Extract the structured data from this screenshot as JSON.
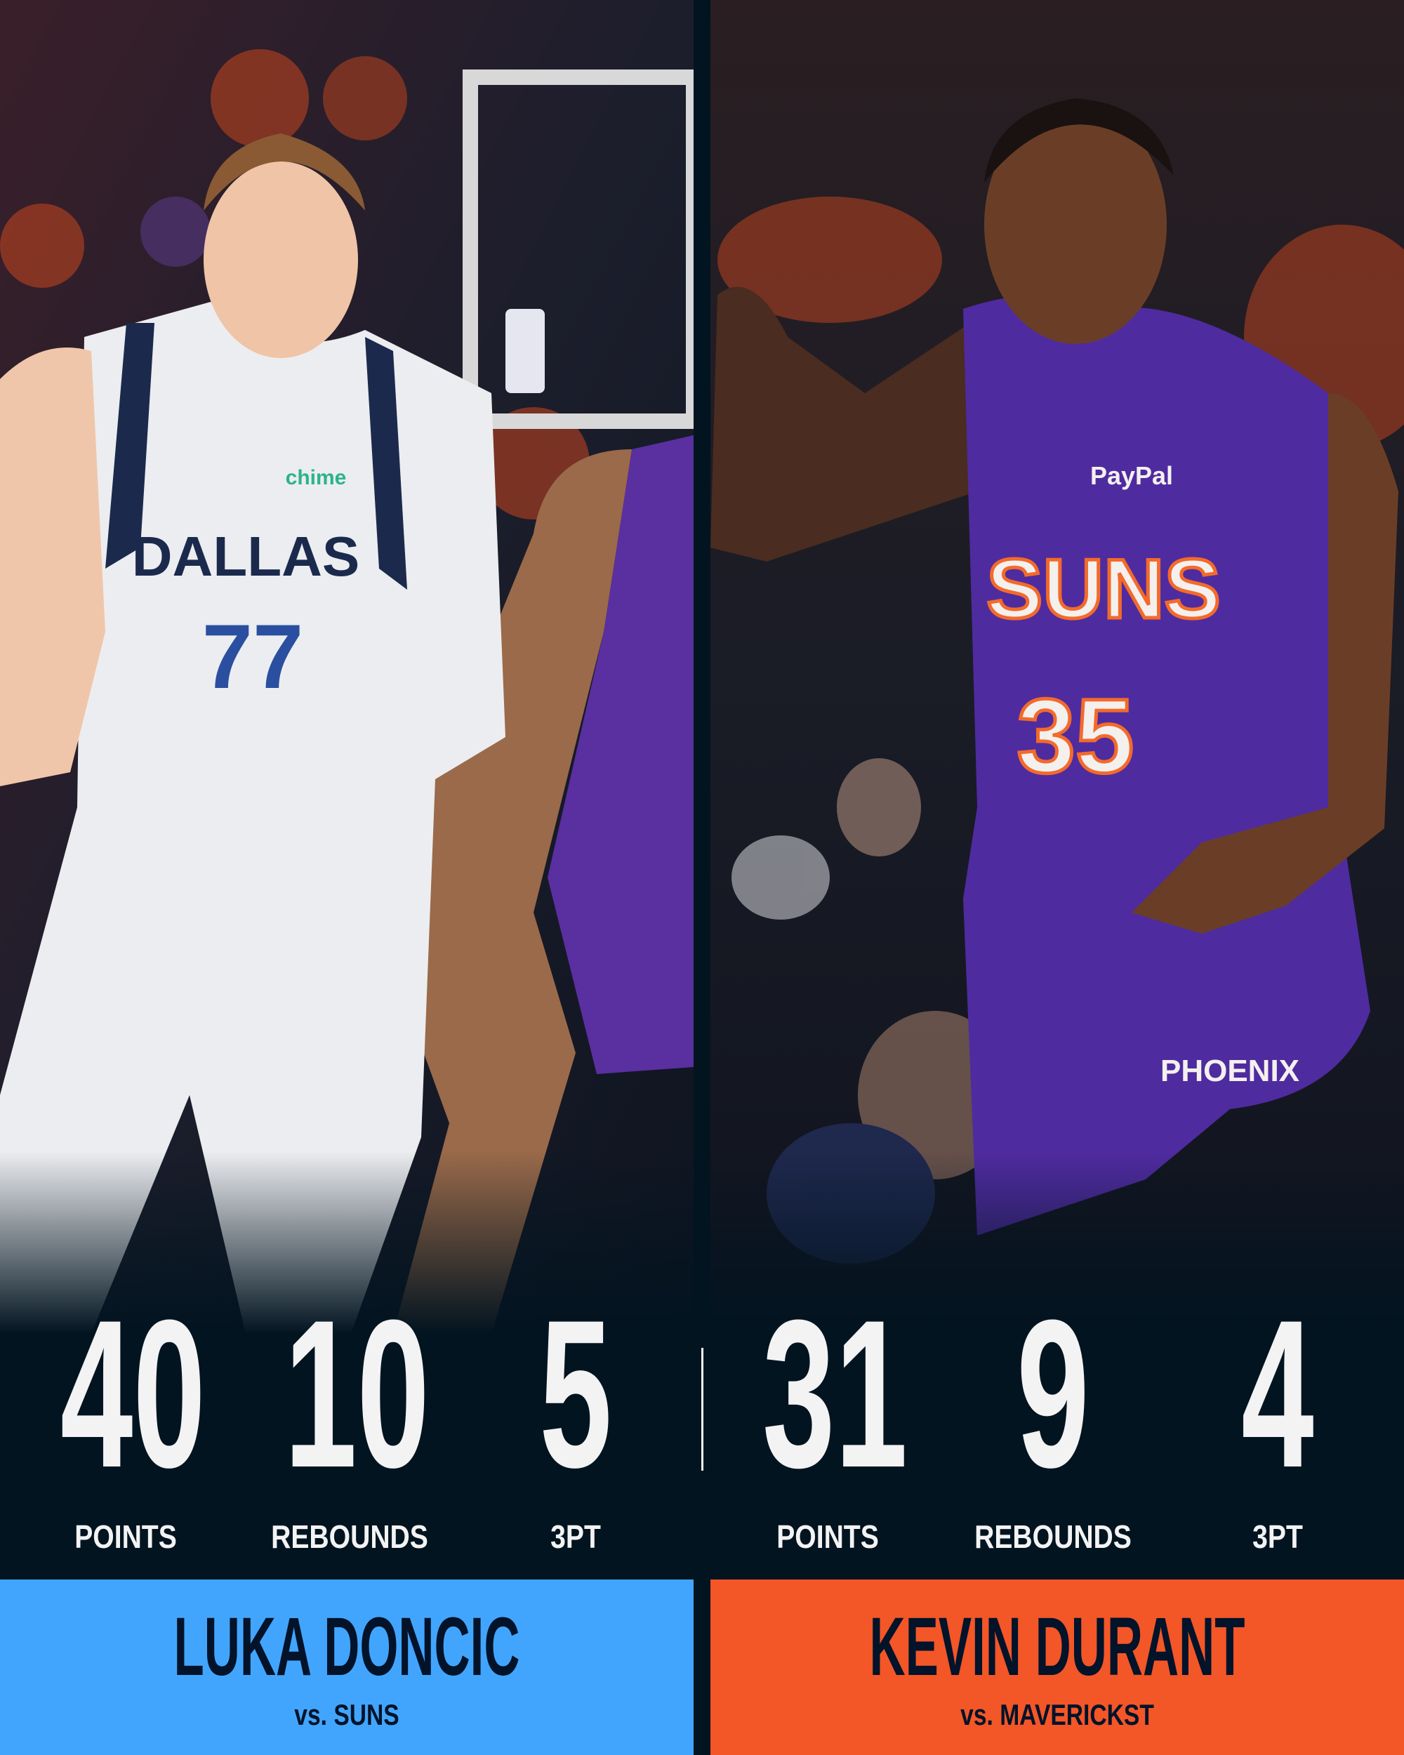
{
  "left_player": {
    "name": "LUKA DONCIC",
    "opponent": "vs. SUNS",
    "jersey_text": "DALLAS",
    "jersey_number": "77",
    "sponsor": "chime",
    "panel_color": "#42a5fd",
    "stats": [
      {
        "value": "40",
        "label": "POINTS"
      },
      {
        "value": "10",
        "label": "REBOUNDS"
      },
      {
        "value": "5",
        "label": "3PT"
      }
    ]
  },
  "right_player": {
    "name": "KEVIN DURANT",
    "opponent": "vs. MAVERICKST",
    "jersey_text": "SUNS",
    "jersey_number": "35",
    "sponsor": "PayPal",
    "shorts_text": "PHOENIX",
    "panel_color": "#f35627",
    "stats": [
      {
        "value": "31",
        "label": "POINTS"
      },
      {
        "value": "9",
        "label": "REBOUNDS"
      },
      {
        "value": "4",
        "label": "3PT"
      }
    ]
  },
  "colors": {
    "background": "#021420",
    "text_dark": "#02132a",
    "text_light": "#f3f3f3"
  }
}
